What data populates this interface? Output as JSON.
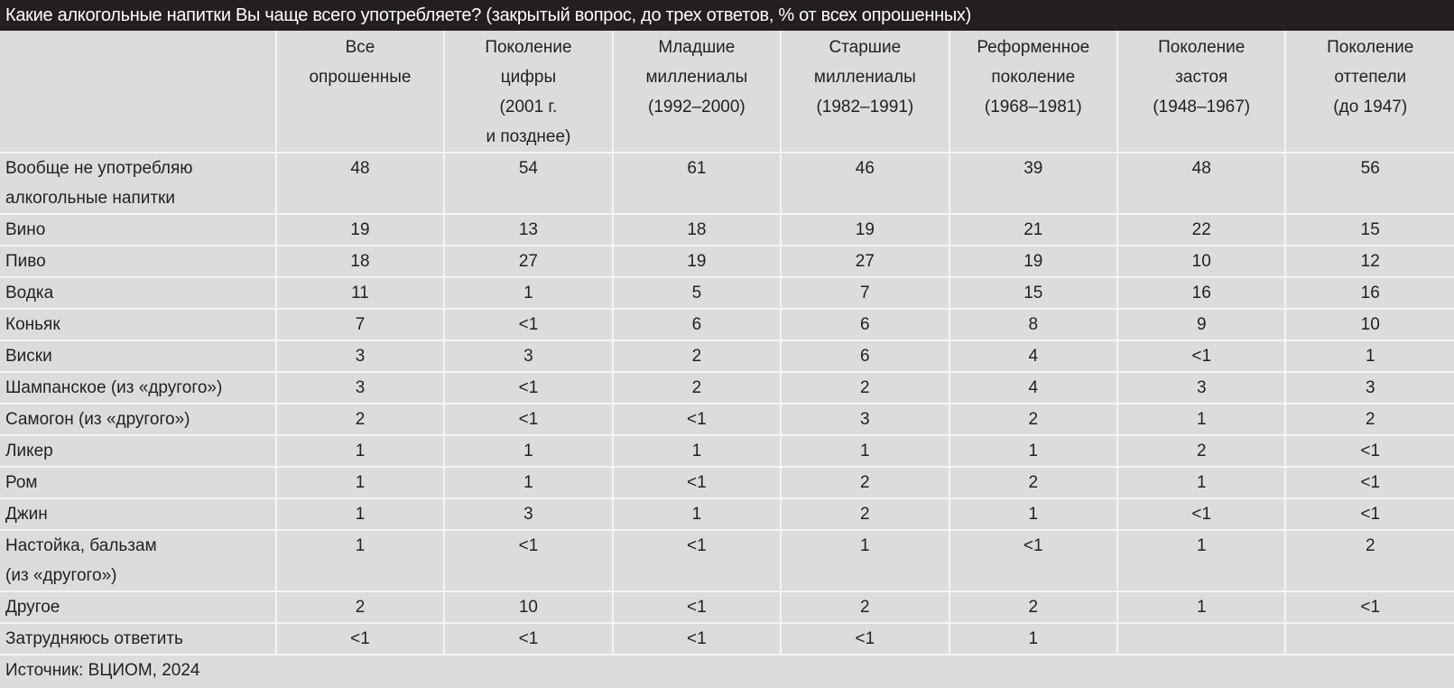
{
  "title": "Какие алкогольные напитки Вы чаще всего употребляете? (закрытый вопрос, до трех ответов, % от всех опрошенных)",
  "columns": [
    [
      "Все",
      "опрошенные"
    ],
    [
      "Поколение",
      "цифры",
      "(2001 г.",
      "и позднее)"
    ],
    [
      "Младшие",
      "миллениалы",
      "(1992–2000)"
    ],
    [
      "Старшие",
      "миллениалы",
      "(1982–1991)"
    ],
    [
      "Реформенное",
      "поколение",
      "(1968–1981)"
    ],
    [
      "Поколение",
      "застоя",
      "(1948–1967)"
    ],
    [
      "Поколение",
      "оттепели",
      "(до 1947)"
    ]
  ],
  "rows": [
    {
      "label": [
        "Вообще не употребляю",
        "алкогольные напитки"
      ],
      "values": [
        "48",
        "54",
        "61",
        "46",
        "39",
        "48",
        "56"
      ]
    },
    {
      "label": [
        "Вино"
      ],
      "values": [
        "19",
        "13",
        "18",
        "19",
        "21",
        "22",
        "15"
      ]
    },
    {
      "label": [
        "Пиво"
      ],
      "values": [
        "18",
        "27",
        "19",
        "27",
        "19",
        "10",
        "12"
      ]
    },
    {
      "label": [
        "Водка"
      ],
      "values": [
        "11",
        "1",
        "5",
        "7",
        "15",
        "16",
        "16"
      ]
    },
    {
      "label": [
        "Коньяк"
      ],
      "values": [
        "7",
        "<1",
        "6",
        "6",
        "8",
        "9",
        "10"
      ]
    },
    {
      "label": [
        "Виски"
      ],
      "values": [
        "3",
        "3",
        "2",
        "6",
        "4",
        "<1",
        "1"
      ]
    },
    {
      "label": [
        "Шампанское (из «другого»)"
      ],
      "values": [
        "3",
        "<1",
        "2",
        "2",
        "4",
        "3",
        "3"
      ]
    },
    {
      "label": [
        "Самогон (из «другого»)"
      ],
      "values": [
        "2",
        "<1",
        "<1",
        "3",
        "2",
        "1",
        "2"
      ]
    },
    {
      "label": [
        "Ликер"
      ],
      "values": [
        "1",
        "1",
        "1",
        "1",
        "1",
        "2",
        "<1"
      ]
    },
    {
      "label": [
        "Ром"
      ],
      "values": [
        "1",
        "1",
        "<1",
        "2",
        "2",
        "1",
        "<1"
      ]
    },
    {
      "label": [
        "Джин"
      ],
      "values": [
        "1",
        "3",
        "1",
        "2",
        "1",
        "<1",
        "<1"
      ]
    },
    {
      "label": [
        "Настойка, бальзам",
        "(из «другого»)"
      ],
      "values": [
        "1",
        "<1",
        "<1",
        "1",
        "<1",
        "1",
        "2"
      ]
    },
    {
      "label": [
        "Другое"
      ],
      "values": [
        "2",
        "10",
        "<1",
        "2",
        "2",
        "1",
        "<1"
      ]
    },
    {
      "label": [
        "Затрудняюсь ответить"
      ],
      "values": [
        "<1",
        "<1",
        "<1",
        "<1",
        "1",
        "",
        ""
      ]
    }
  ],
  "source": "Источник: ВЦИОМ, 2024",
  "colors": {
    "title_bar": "#231f20",
    "table_bg": "#dcdcde",
    "grid": "#f4f4f6"
  }
}
